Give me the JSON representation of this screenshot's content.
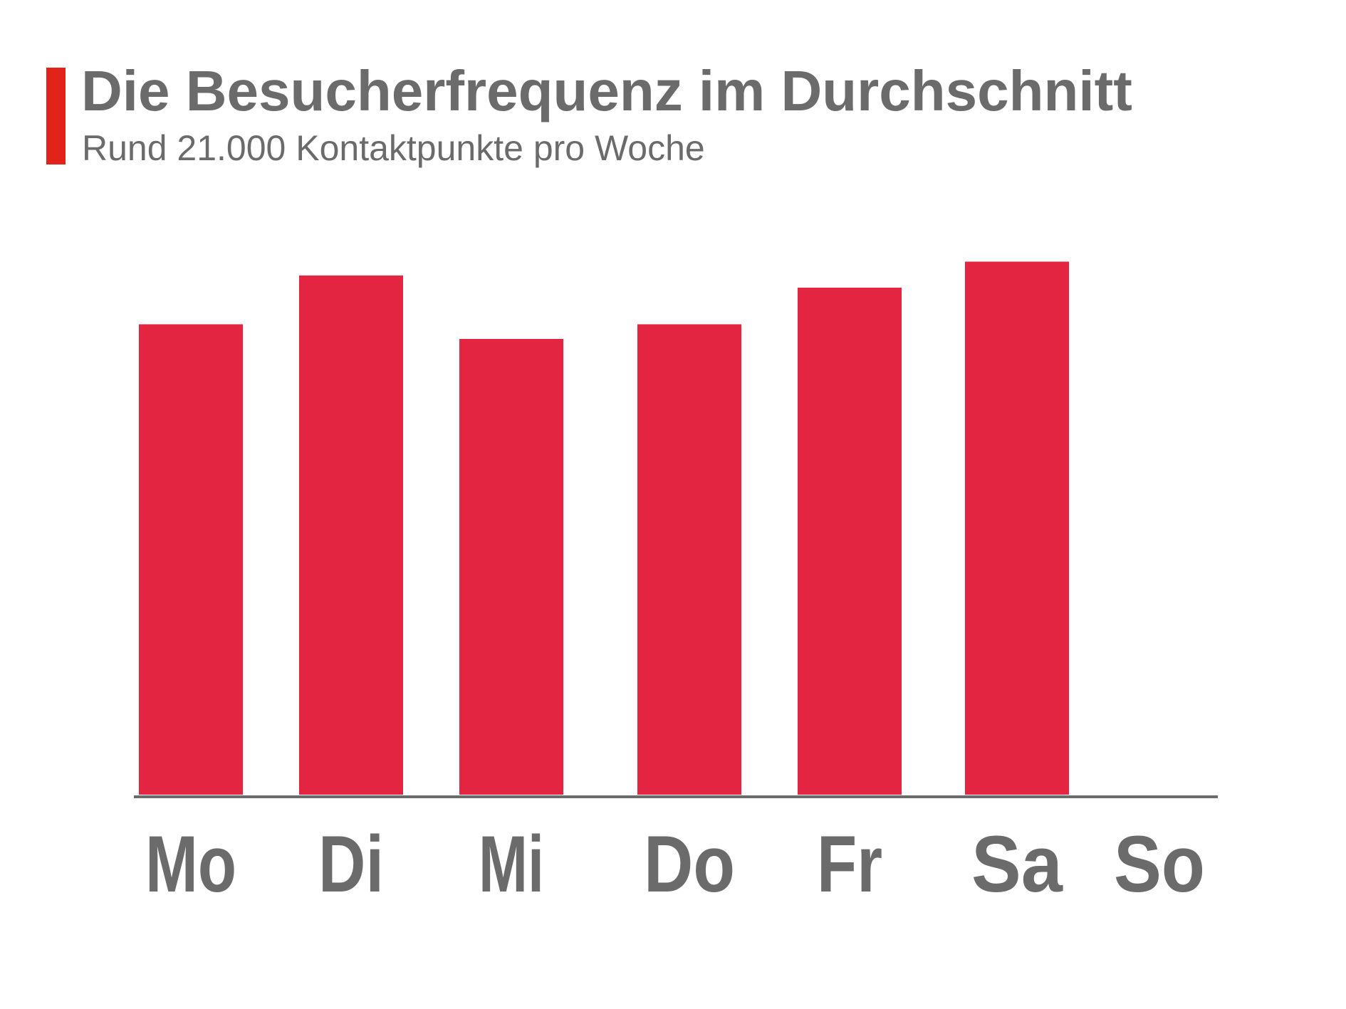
{
  "header": {
    "title": "Die Besucherfrequenz im Durchschnitt",
    "subtitle": "Rund 21.000 Kontaktpunkte pro Woche"
  },
  "colors": {
    "accent": "#e2231a",
    "bar": "#e42541",
    "axis": "#6b6b6b",
    "text": "#6b6b6b"
  },
  "chart_data": {
    "type": "bar",
    "title": "Die Besucherfrequenz im Durchschnitt",
    "subtitle": "Rund 21.000 Kontaktpunkte pro Woche",
    "categories": [
      "Mo",
      "Di",
      "Mi",
      "Do",
      "Fr",
      "Sa",
      "So"
    ],
    "values": [
      578,
      638,
      560,
      578,
      623,
      655,
      0
    ],
    "ylim": [
      0,
      700
    ],
    "grid": false,
    "legend": "none",
    "xlabel": "",
    "ylabel": ""
  }
}
